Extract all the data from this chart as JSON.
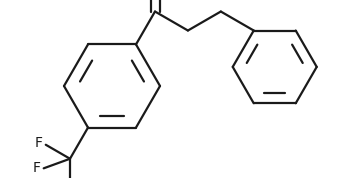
{
  "bg_color": "#ffffff",
  "line_color": "#1a1a1a",
  "line_width": 1.6,
  "figsize": [
    3.58,
    1.78
  ],
  "dpi": 100
}
